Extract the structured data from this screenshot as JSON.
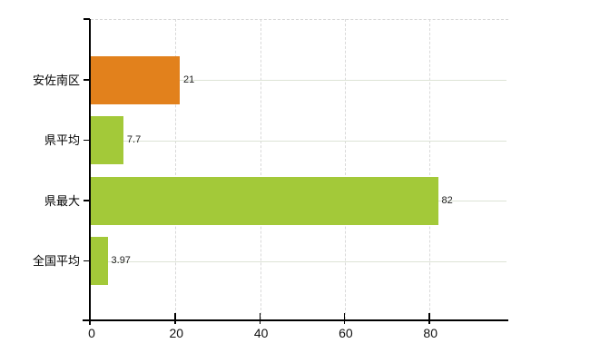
{
  "chart_data": {
    "type": "bar",
    "orientation": "horizontal",
    "title": "",
    "xlabel": "",
    "ylabel": "",
    "legend": "none",
    "grid": "on",
    "categories": [
      "安佐南区",
      "県平均",
      "県最大",
      "全国平均"
    ],
    "values": [
      21,
      7.7,
      82,
      3.97
    ],
    "value_labels": [
      "21",
      "7.7",
      "82",
      "3.97"
    ],
    "bar_colors": [
      "#e2811c",
      "#a3c939",
      "#a3c939",
      "#a3c939"
    ],
    "x_ticks": [
      0,
      20,
      40,
      60,
      80
    ],
    "x_tick_labels": [
      "0",
      "20",
      "40",
      "60",
      "80"
    ],
    "xlim": [
      0,
      98.6
    ],
    "colors": {
      "background": "#ffffff",
      "axis": "#000000",
      "vertical_gridline": "#d9d9d9",
      "horizontal_gridline": "#dde3d6",
      "top_border_dashed": "#d6d6d6",
      "text": "#111111",
      "orange_bar": "#e2811c",
      "green_bar": "#a3c939"
    }
  }
}
